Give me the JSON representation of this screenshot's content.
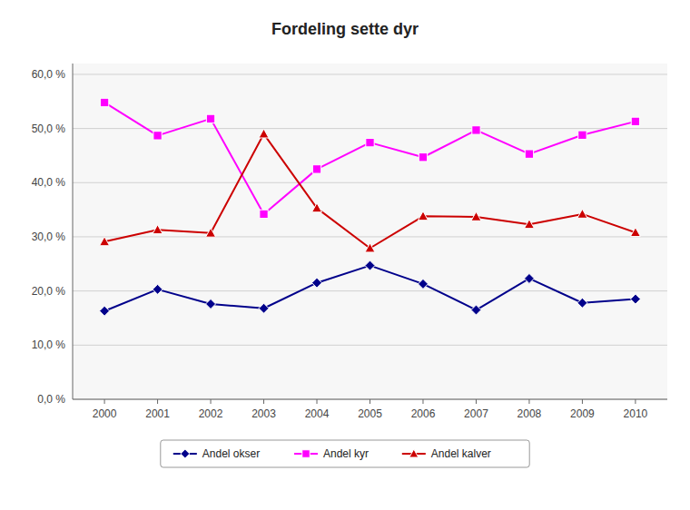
{
  "chart_data": {
    "type": "line",
    "title": "Fordeling sette dyr",
    "x": [
      2000,
      2001,
      2002,
      2003,
      2004,
      2005,
      2006,
      2007,
      2008,
      2009,
      2010
    ],
    "series": [
      {
        "name": "Andel okser",
        "color": "#00008B",
        "marker": "diamond",
        "values": [
          0.163,
          0.203,
          0.176,
          0.168,
          0.215,
          0.247,
          0.213,
          0.165,
          0.223,
          0.178,
          0.185
        ]
      },
      {
        "name": "Andel kyr",
        "color": "#FF00FF",
        "marker": "square",
        "values": [
          0.548,
          0.487,
          0.518,
          0.342,
          0.425,
          0.474,
          0.447,
          0.497,
          0.453,
          0.488,
          0.513
        ]
      },
      {
        "name": "Andel kalver",
        "color": "#CC0000",
        "marker": "triangle",
        "values": [
          0.291,
          0.313,
          0.307,
          0.49,
          0.353,
          0.279,
          0.338,
          0.337,
          0.323,
          0.342,
          0.308
        ]
      }
    ],
    "xlim": [
      1999.4,
      2010.6
    ],
    "xticks": [
      2000,
      2001,
      2002,
      2003,
      2004,
      2005,
      2006,
      2007,
      2008,
      2009,
      2010
    ],
    "ylim": [
      0.0,
      0.62
    ],
    "yticks": [
      {
        "value": 0.0,
        "label": "0,0 %"
      },
      {
        "value": 0.1,
        "label": "10,0 %"
      },
      {
        "value": 0.2,
        "label": "20,0 %"
      },
      {
        "value": 0.3,
        "label": "30,0 %"
      },
      {
        "value": 0.4,
        "label": "40,0 %"
      },
      {
        "value": 0.5,
        "label": "50,0 %"
      },
      {
        "value": 0.6,
        "label": "60,0 %"
      }
    ],
    "grid": true,
    "legend": "bottom"
  }
}
